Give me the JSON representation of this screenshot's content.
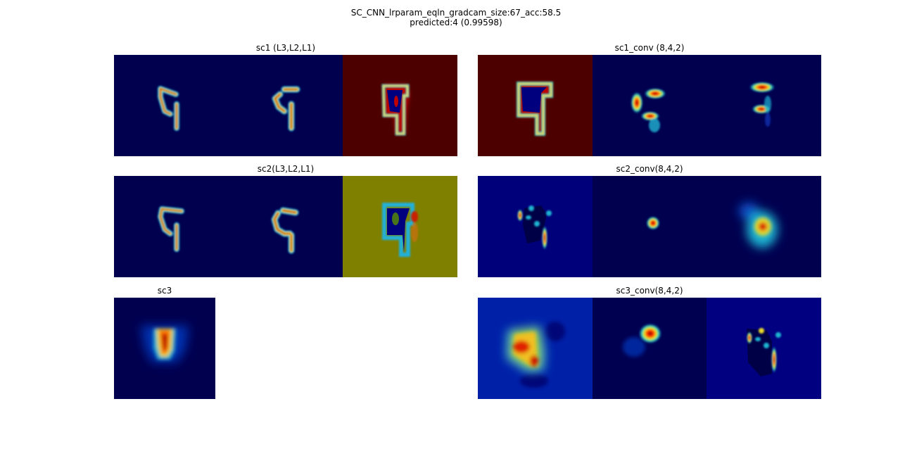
{
  "figure": {
    "title_line1": "SC_CNN_lrparam_eqln_gradcam_size:67_acc:58.5",
    "title_line2": "predicted:4 (0.99598)"
  },
  "panels": {
    "sc1": {
      "title": "sc1 (L3,L2,L1)",
      "tiles": [
        "heatmap-digit-outline",
        "heatmap-digit-outline",
        "heatmap-saturated-red"
      ]
    },
    "sc1_conv": {
      "title": "sc1_conv (8,4,2)",
      "tiles": [
        "heatmap-saturated-red",
        "heatmap-sparse-blobs",
        "heatmap-sparse-blobs"
      ]
    },
    "sc2": {
      "title": "sc2(L3,L2,L1)",
      "tiles": [
        "heatmap-digit-outline",
        "heatmap-digit-outline",
        "heatmap-saturated-olive"
      ]
    },
    "sc2_conv": {
      "title": "sc2_conv(8,4,2)",
      "tiles": [
        "heatmap-sparse-blobs",
        "heatmap-single-spot",
        "heatmap-diffuse-blob"
      ]
    },
    "sc3": {
      "title": "sc3",
      "tiles": [
        "heatmap-diffuse-blob"
      ]
    },
    "sc3_conv": {
      "title": "sc3_conv(8,4,2)",
      "tiles": [
        "heatmap-diffuse-blob",
        "heatmap-single-spot",
        "heatmap-sparse-blobs"
      ]
    }
  },
  "colormap": {
    "name": "jet",
    "dark_navy": "#00004f",
    "blue": "#00007f",
    "mid_blue": "#0020a8",
    "cyan": "#1fb4d2",
    "green": "#39c86a",
    "yellow": "#e8d92b",
    "orange": "#ff6a00",
    "red": "#c80000",
    "dark_red": "#4d0000",
    "olive": "#7f7f00"
  }
}
